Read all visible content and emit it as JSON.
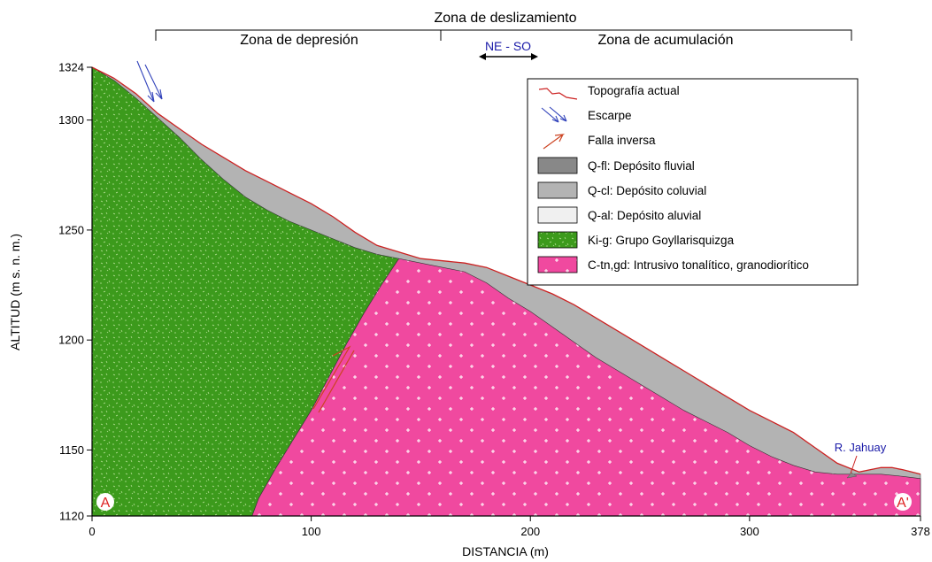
{
  "zones": {
    "main": "Zona de deslizamiento",
    "left": "Zona de depresión",
    "right": "Zona de acumulación",
    "direction": "NE - SO"
  },
  "axes": {
    "xlabel": "DISTANCIA (m)",
    "ylabel": "ALTITUD (m s. n. m.)",
    "x_ticks": [
      "0",
      "100",
      "200",
      "300",
      "378"
    ],
    "y_ticks": [
      "1324",
      "1300",
      "1250",
      "1200",
      "1150",
      "1120"
    ]
  },
  "chart_data": {
    "type": "geologic-cross-section",
    "x_unit": "m",
    "y_unit": "m s. n. m.",
    "xlim": [
      0,
      378
    ],
    "ylim": [
      1120,
      1324
    ],
    "x_tick_values": [
      0,
      100,
      200,
      300,
      378
    ],
    "y_tick_values": [
      1324,
      1300,
      1250,
      1200,
      1150,
      1120
    ],
    "topography": [
      [
        0,
        1324
      ],
      [
        10,
        1319
      ],
      [
        20,
        1312
      ],
      [
        30,
        1303
      ],
      [
        40,
        1296
      ],
      [
        50,
        1289
      ],
      [
        60,
        1283
      ],
      [
        70,
        1277
      ],
      [
        80,
        1272
      ],
      [
        90,
        1267
      ],
      [
        100,
        1262
      ],
      [
        110,
        1256
      ],
      [
        120,
        1249
      ],
      [
        130,
        1243
      ],
      [
        140,
        1240
      ],
      [
        150,
        1237
      ],
      [
        160,
        1236
      ],
      [
        170,
        1235
      ],
      [
        180,
        1233
      ],
      [
        190,
        1229
      ],
      [
        200,
        1225
      ],
      [
        210,
        1221
      ],
      [
        220,
        1216
      ],
      [
        230,
        1210
      ],
      [
        240,
        1204
      ],
      [
        250,
        1198
      ],
      [
        260,
        1192
      ],
      [
        270,
        1186
      ],
      [
        280,
        1180
      ],
      [
        290,
        1174
      ],
      [
        300,
        1168
      ],
      [
        310,
        1163
      ],
      [
        320,
        1158
      ],
      [
        330,
        1151
      ],
      [
        340,
        1144
      ],
      [
        350,
        1140
      ],
      [
        355,
        1141
      ],
      [
        360,
        1142
      ],
      [
        365,
        1142
      ],
      [
        370,
        1141
      ],
      [
        378,
        1139
      ]
    ],
    "goyllar_surface": [
      [
        0,
        1324
      ],
      [
        10,
        1318
      ],
      [
        20,
        1310
      ],
      [
        30,
        1301
      ],
      [
        40,
        1292
      ],
      [
        50,
        1282
      ],
      [
        60,
        1273
      ],
      [
        70,
        1265
      ],
      [
        80,
        1259
      ],
      [
        90,
        1254
      ],
      [
        100,
        1250
      ],
      [
        110,
        1246
      ],
      [
        120,
        1242
      ],
      [
        130,
        1239
      ],
      [
        140,
        1237
      ]
    ],
    "fault_contact": [
      [
        140,
        1237
      ],
      [
        132,
        1225
      ],
      [
        124,
        1212
      ],
      [
        116,
        1198
      ],
      [
        108,
        1183
      ],
      [
        100,
        1168
      ],
      [
        92,
        1155
      ],
      [
        84,
        1142
      ],
      [
        76,
        1128
      ],
      [
        73,
        1120
      ]
    ],
    "intrusive_surface": [
      [
        140,
        1237
      ],
      [
        150,
        1235
      ],
      [
        160,
        1233
      ],
      [
        170,
        1231
      ],
      [
        180,
        1226
      ],
      [
        190,
        1219
      ],
      [
        200,
        1213
      ],
      [
        210,
        1206
      ],
      [
        220,
        1199
      ],
      [
        230,
        1192
      ],
      [
        240,
        1186
      ],
      [
        250,
        1180
      ],
      [
        260,
        1174
      ],
      [
        270,
        1168
      ],
      [
        280,
        1163
      ],
      [
        290,
        1158
      ],
      [
        300,
        1152
      ],
      [
        310,
        1147
      ],
      [
        320,
        1143
      ],
      [
        330,
        1140
      ],
      [
        340,
        1139
      ],
      [
        350,
        1139
      ],
      [
        360,
        1139
      ],
      [
        370,
        1138
      ],
      [
        378,
        1137
      ]
    ],
    "river": {
      "x": 348,
      "y": 1140,
      "label": "R. Jahuay"
    },
    "section_ends": [
      "A",
      "A'"
    ],
    "units": [
      {
        "code": "Q-fl",
        "desc": "Depósito fluvial",
        "color": "#888888"
      },
      {
        "code": "Q-cl",
        "desc": "Depósito coluvial",
        "color": "#b3b3b3"
      },
      {
        "code": "Q-al",
        "desc": "Depósito aluvial",
        "color": "#f0f0f0"
      },
      {
        "code": "Ki-g",
        "desc": "Grupo Goyllarisquizga",
        "color": "#3c9a1c"
      },
      {
        "code": "C-tn,gd",
        "desc": "Intrusivo tonalítico, granodiorítico",
        "color": "#f0499f"
      }
    ]
  },
  "legend": {
    "topografia": "Topografía actual",
    "escarpe": "Escarpe",
    "falla": "Falla inversa",
    "units": [
      "Q-fl: Depósito fluvial",
      "Q-cl: Depósito coluvial",
      "Q-al: Depósito aluvial",
      "Ki-g: Grupo Goyllarisquizga",
      "C-tn,gd: Intrusivo tonalítico, granodiorítico"
    ]
  },
  "colors": {
    "topography_line": "#cc2222",
    "scarp": "#3344bb",
    "fault": "#cc4422",
    "direction": "#1a1aa8",
    "river_label": "#1a1aa8",
    "end_label": "#dd2222"
  }
}
